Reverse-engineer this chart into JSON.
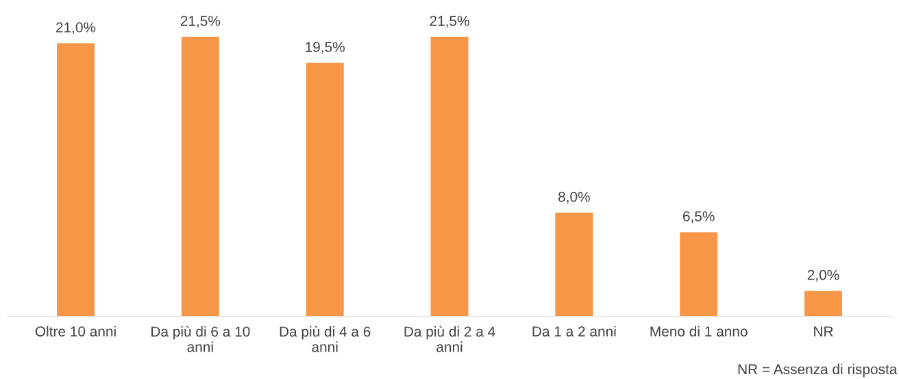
{
  "chart_data": {
    "type": "bar",
    "categories": [
      "Oltre 10 anni",
      "Da più di 6 a 10\nanni",
      "Da più di 4 a 6\nanni",
      "Da più di 2 a 4\nanni",
      "Da 1 a 2 anni",
      "Meno di 1 anno",
      "NR"
    ],
    "values": [
      21.0,
      21.5,
      19.5,
      21.5,
      8.0,
      6.5,
      2.0
    ],
    "value_labels": [
      "21,0%",
      "21,5%",
      "19,5%",
      "21,5%",
      "8,0%",
      "6,5%",
      "2,0%"
    ],
    "color": "#f79646",
    "grid": false,
    "legend": false,
    "annotations": [
      "NR = Assenza di risposta"
    ]
  }
}
